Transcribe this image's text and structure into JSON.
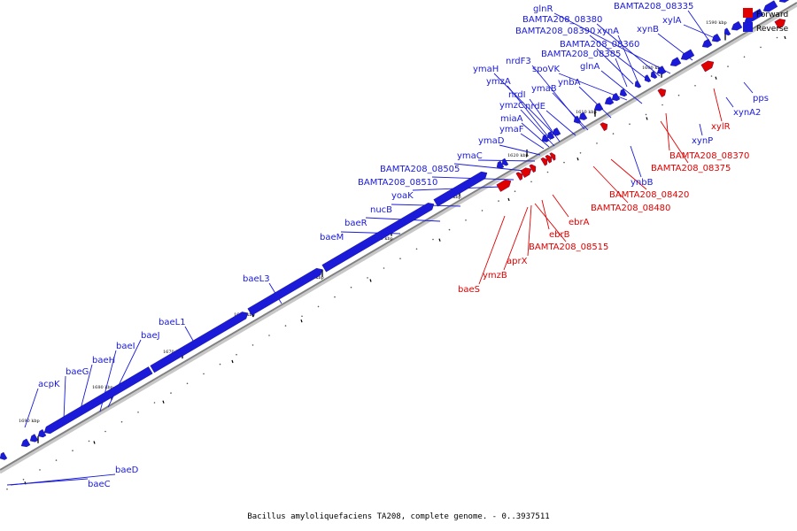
{
  "title": "Bacillus amyloliquefaciens TA208, complete genome. - 0..3937511",
  "legend": [
    {
      "label": "Forward",
      "color": "#e00000"
    },
    {
      "label": "Reverse",
      "color": "#1a1ad8"
    }
  ],
  "colors": {
    "forward": "#e00000",
    "reverse": "#1a1ad8",
    "backbone": "#808080"
  },
  "ticks": [
    "1590 kbp",
    "1600 kbp",
    "1610 kbp",
    "1620 kbp",
    "1630 kbp",
    "1640 kbp",
    "1650 kbp",
    "1660 kbp",
    "1670 kbp",
    "1680 kbp",
    "1690 kbp"
  ],
  "reverse_genes": [
    "BAMTA208_08335",
    "xylA",
    "xynB",
    "glnR",
    "BAMTA208_08380",
    "BAMTA208_08390",
    "xynA",
    "BAMTA208_08360",
    "BAMTA208_08385",
    "nrdF3",
    "spoVK",
    "glnA",
    "ymaH",
    "ymzA",
    "ynbA",
    "ymaB",
    "nrdI",
    "ymzC",
    "nrdE",
    "miaA",
    "ymaF",
    "ymaD",
    "ymaC",
    "BAMTA208_08505",
    "BAMTA208_08510",
    "yoaK",
    "nucB",
    "baeR",
    "baeM",
    "baeL3",
    "baeL1",
    "baeJ",
    "baeI",
    "baeH",
    "baeG",
    "acpK",
    "pps",
    "xynA2",
    "xynP",
    "ynbB",
    "baeD",
    "baeC"
  ],
  "forward_genes": [
    "xylR",
    "BAMTA208_08370",
    "BAMTA208_08375",
    "BAMTA208_08420",
    "BAMTA208_08480",
    "ebrA",
    "ebrB",
    "BAMTA208_08515",
    "aprX",
    "ymzB",
    "baeS"
  ]
}
